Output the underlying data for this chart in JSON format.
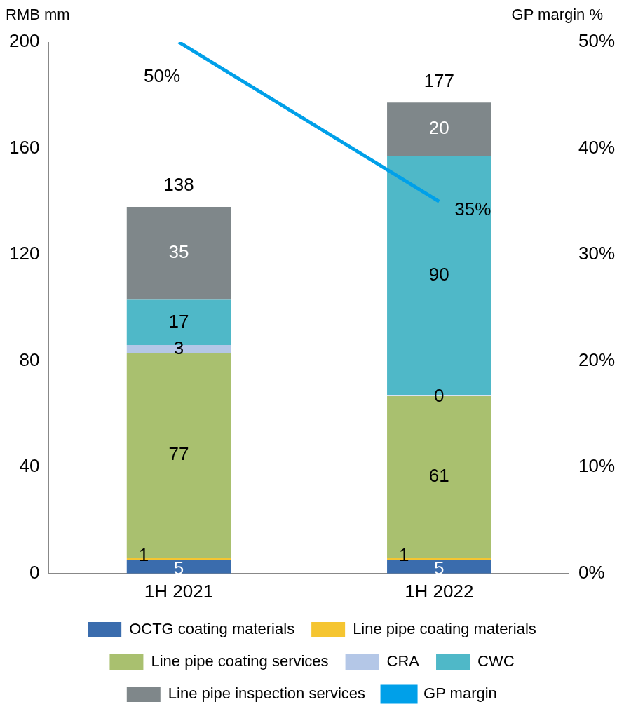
{
  "chart_data": {
    "type": "bar",
    "stacked": true,
    "ylabel": "RMB mm",
    "y2label": "GP margin %",
    "categories": [
      "1H 2021",
      "1H 2022"
    ],
    "series": [
      {
        "name": "OCTG coating materials",
        "color": "#3a6cad",
        "values": [
          5,
          5
        ],
        "value_labels": [
          "5",
          "5"
        ]
      },
      {
        "name": "Line pipe coating materials",
        "color": "#f5c531",
        "values": [
          1,
          1
        ],
        "value_labels": [
          "1",
          "1"
        ]
      },
      {
        "name": "Line pipe coating services",
        "color": "#a9c06f",
        "values": [
          77,
          61
        ],
        "value_labels": [
          "77",
          "61"
        ]
      },
      {
        "name": "CRA",
        "color": "#b4c7e7",
        "values": [
          3,
          0
        ],
        "value_labels": [
          "3",
          "0"
        ]
      },
      {
        "name": "CWC",
        "color": "#4fb8c8",
        "values": [
          17,
          90
        ],
        "value_labels": [
          "17",
          "90"
        ]
      },
      {
        "name": "Line pipe inspection services",
        "color": "#7f878a",
        "values": [
          35,
          20
        ],
        "value_labels": [
          "35",
          "20"
        ]
      },
      {
        "name": "GP margin",
        "type": "line",
        "axis": "y2",
        "color": "#00a0e9",
        "values": [
          50,
          35
        ],
        "value_labels": [
          "50%",
          "35%"
        ]
      }
    ],
    "totals": [
      "138",
      "177"
    ],
    "ylim": [
      0,
      200
    ],
    "yticks": [
      0,
      40,
      80,
      120,
      160,
      200
    ],
    "y2lim": [
      0,
      50
    ],
    "y2ticks": [
      {
        "value": 0,
        "label": "0%"
      },
      {
        "value": 10,
        "label": "10%"
      },
      {
        "value": 20,
        "label": "20%"
      },
      {
        "value": 30,
        "label": "30%"
      },
      {
        "value": 40,
        "label": "40%"
      },
      {
        "value": 50,
        "label": "50%"
      }
    ],
    "grid": false,
    "legend": "bottom",
    "marker": "none",
    "line_style": "solid"
  }
}
